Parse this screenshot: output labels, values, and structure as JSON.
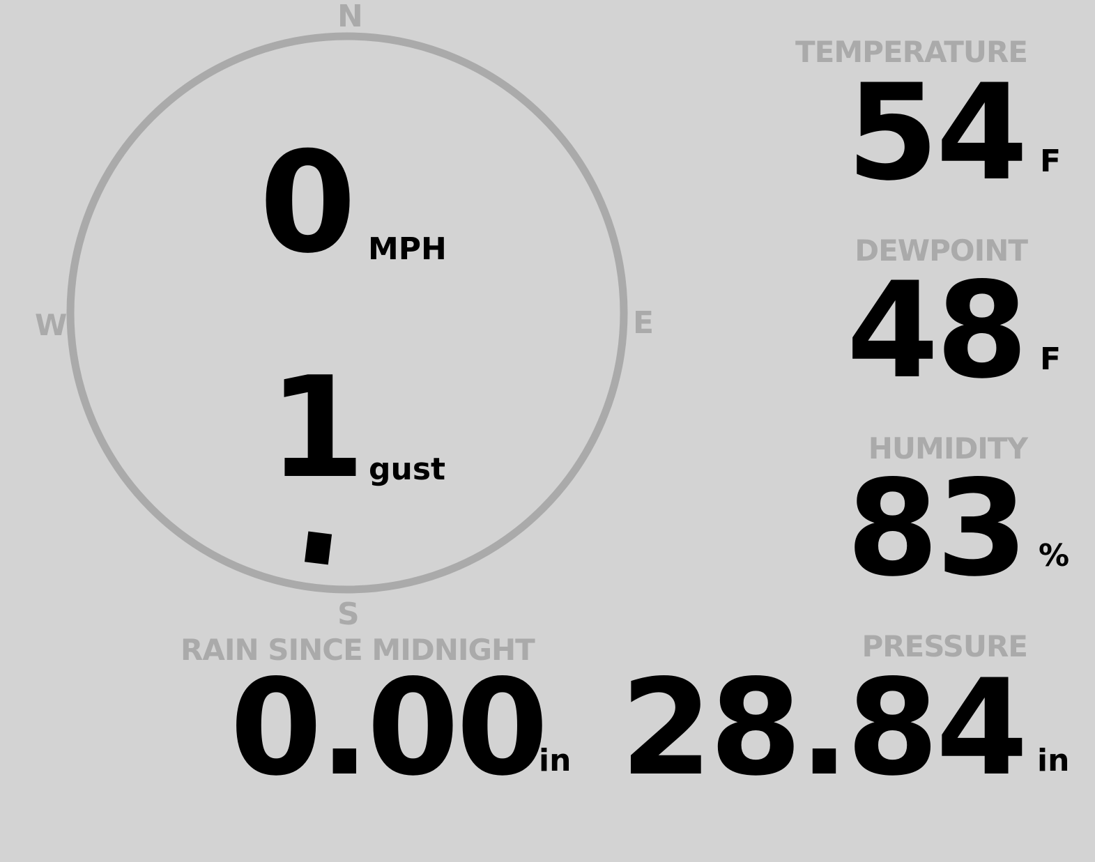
{
  "colors": {
    "background": "#d3d3d3",
    "label": "#aaaaaa",
    "value": "#000000"
  },
  "wind": {
    "compass": {
      "n": "N",
      "e": "E",
      "s": "S",
      "w": "W"
    },
    "speed": "0",
    "speed_unit": "MPH",
    "gust": "1",
    "gust_unit": "gust",
    "direction_deg": 187
  },
  "temperature": {
    "label": "TEMPERATURE",
    "value": "54",
    "unit": "F"
  },
  "dewpoint": {
    "label": "DEWPOINT",
    "value": "48",
    "unit": "F"
  },
  "humidity": {
    "label": "HUMIDITY",
    "value": "83",
    "unit": "%"
  },
  "rain": {
    "label": "RAIN SINCE MIDNIGHT",
    "value": "0.00",
    "unit": "in"
  },
  "pressure": {
    "label": "PRESSURE",
    "value": "28.84",
    "unit": "in"
  }
}
